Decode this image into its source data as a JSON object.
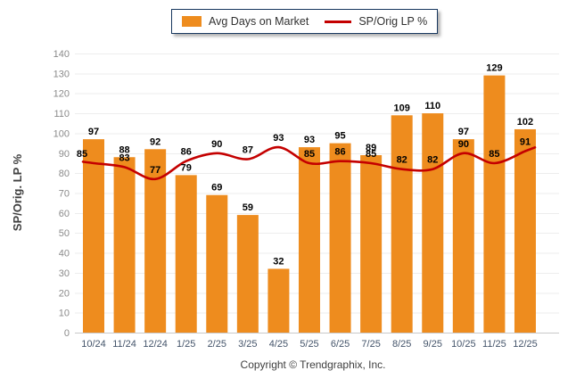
{
  "chart_data": {
    "type": "bar",
    "subtype": "bar-line-combo",
    "categories": [
      "10/24",
      "11/24",
      "12/24",
      "1/25",
      "2/25",
      "3/25",
      "4/25",
      "5/25",
      "6/25",
      "7/25",
      "8/25",
      "9/25",
      "10/25",
      "11/25",
      "12/25"
    ],
    "series": [
      {
        "name": "Avg Days on Market",
        "type": "bar",
        "color": "#EE8C1E",
        "values": [
          97,
          88,
          92,
          79,
          69,
          59,
          32,
          93,
          95,
          89,
          109,
          110,
          97,
          129,
          102
        ]
      },
      {
        "name": "SP/Orig LP %",
        "type": "line",
        "color": "#C40000",
        "values": [
          85,
          83,
          77,
          86,
          90,
          87,
          93,
          85,
          86,
          85,
          82,
          82,
          90,
          85,
          91
        ]
      }
    ],
    "title": "",
    "xlabel": "",
    "ylabel": "SP/Orig. LP %",
    "ylim": [
      0,
      140
    ],
    "ytick_step": 10,
    "grid": true,
    "legend_position": "top-center"
  },
  "footer": {
    "copyright": "Copyright © Trendgraphix, Inc."
  }
}
